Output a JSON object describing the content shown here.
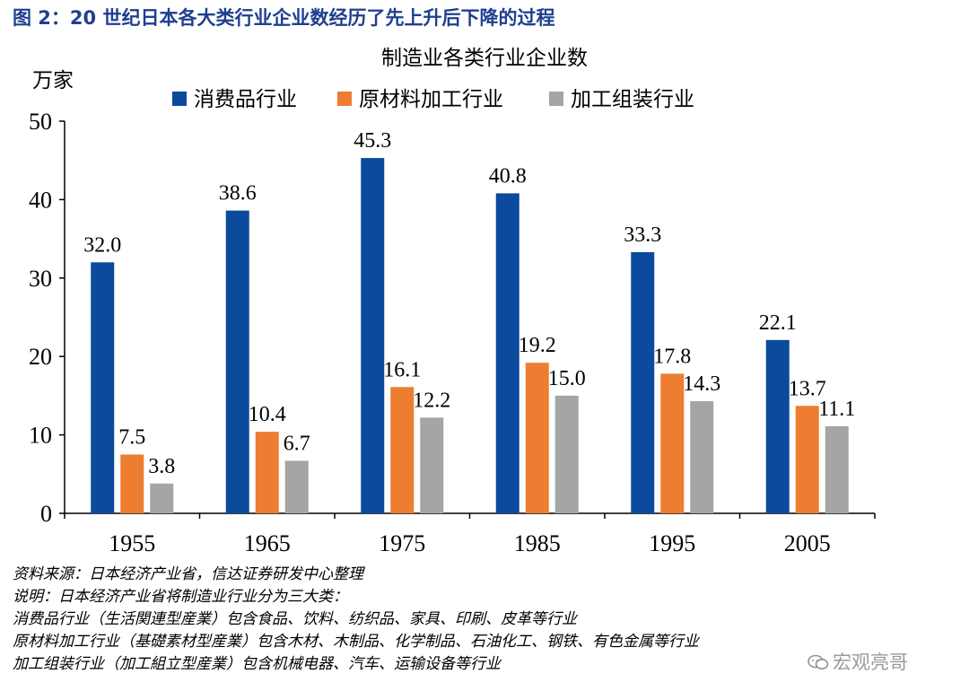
{
  "figure": {
    "title": "图 2：20 世纪日本各大类行业企业数经历了先上升后下降的过程"
  },
  "chart_data": {
    "type": "bar",
    "title": "制造业各类行业企业数",
    "ylabel": "万家",
    "xlabel": "",
    "categories": [
      "1955",
      "1965",
      "1975",
      "1985",
      "1995",
      "2005"
    ],
    "series": [
      {
        "name": "消费品行业",
        "color": "#0b4a9c",
        "values": [
          32.0,
          38.6,
          45.3,
          40.8,
          33.3,
          22.1
        ]
      },
      {
        "name": "原材料加工行业",
        "color": "#ed7d31",
        "values": [
          7.5,
          10.4,
          16.1,
          19.2,
          17.8,
          13.7
        ]
      },
      {
        "name": "加工组装行业",
        "color": "#a5a5a5",
        "values": [
          3.8,
          6.7,
          12.2,
          15.0,
          14.3,
          11.1
        ]
      }
    ],
    "ylim": [
      0,
      50
    ],
    "yticks": [
      0,
      10,
      20,
      30,
      40,
      50
    ],
    "grid": false,
    "legend_position": "top"
  },
  "notes": {
    "source": "资料来源：日本经济产业省，信达证券研发中心整理",
    "explain": "说明：日本经济产业省将制造业行业分为三大类：",
    "line1": "消费品行业（生活関連型産業）包含食品、饮料、纺织品、家具、印刷、皮革等行业",
    "line2": "原材料加工行业（基礎素材型産業）包含木材、木制品、化学制品、石油化工、钢铁、有色金属等行业",
    "line3": "加工组装行业（加工組立型産業）包含机械电器、汽车、运输设备等行业"
  },
  "watermark": {
    "icon": "wechat-icon",
    "text": "宏观亮哥"
  }
}
